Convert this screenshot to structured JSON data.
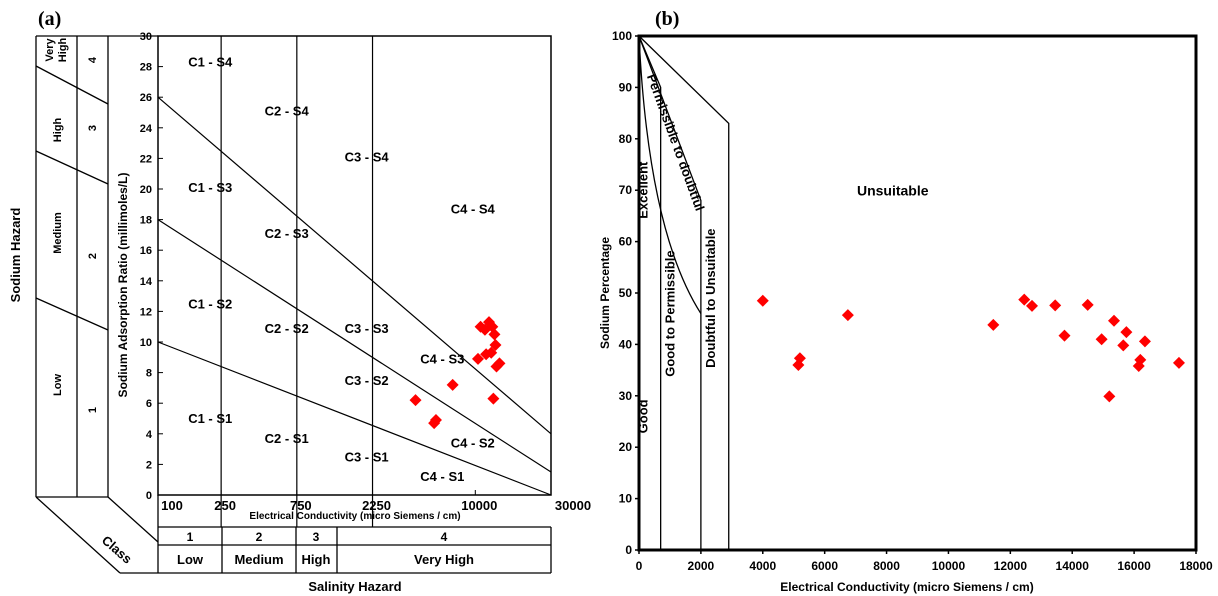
{
  "chart_data": [
    {
      "type": "scatter",
      "panel_label": "(a)",
      "xlabel": "Electrical Conductivity (micro Siemens / cm)",
      "ylabel": "Sodium Adsorption Ratio (millimoles/L)",
      "x_scale": "log",
      "xlim": [
        100,
        30000
      ],
      "ylim": [
        0,
        30
      ],
      "x_ticks": [
        "100",
        "250",
        "750",
        "2250",
        "10000",
        "30000"
      ],
      "x_tick_values": [
        100,
        250,
        750,
        2250,
        10000,
        30000
      ],
      "y_ticks": [
        "0",
        "2",
        "4",
        "6",
        "8",
        "10",
        "12",
        "14",
        "16",
        "18",
        "20",
        "22",
        "24",
        "26",
        "28",
        "30"
      ],
      "y_tick_values": [
        0,
        2,
        4,
        6,
        8,
        10,
        12,
        14,
        16,
        18,
        20,
        22,
        24,
        26,
        28,
        30
      ],
      "marker_color": "#ff0000",
      "marker_shape": "diamond",
      "grid": false,
      "boundary_lines": [
        {
          "from": [
            100,
            26
          ],
          "to": [
            30000,
            4
          ]
        },
        {
          "from": [
            100,
            18
          ],
          "to": [
            30000,
            1.5
          ]
        },
        {
          "from": [
            100,
            10
          ],
          "to": [
            30000,
            0
          ]
        }
      ],
      "vertical_dividers": [
        250,
        750,
        2250
      ],
      "zones": [
        {
          "label": "C1 - S4",
          "x": 155,
          "y": 28
        },
        {
          "label": "C2 - S4",
          "x": 470,
          "y": 24.8
        },
        {
          "label": "C3 - S4",
          "x": 1500,
          "y": 21.8
        },
        {
          "label": "C4 - S4",
          "x": 7000,
          "y": 18.4
        },
        {
          "label": "C1 - S3",
          "x": 155,
          "y": 19.8
        },
        {
          "label": "C2 - S3",
          "x": 470,
          "y": 16.8
        },
        {
          "label": "C3 - S3",
          "x": 1500,
          "y": 10.6
        },
        {
          "label": "C4 - S3",
          "x": 4500,
          "y": 8.6
        },
        {
          "label": "C1 - S2",
          "x": 155,
          "y": 12.2
        },
        {
          "label": "C2 - S2",
          "x": 470,
          "y": 10.6
        },
        {
          "label": "C3 - S2",
          "x": 1500,
          "y": 7.2
        },
        {
          "label": "C4 - S2",
          "x": 7000,
          "y": 3.1
        },
        {
          "label": "C1 - S1",
          "x": 155,
          "y": 4.7
        },
        {
          "label": "C2 - S1",
          "x": 470,
          "y": 3.4
        },
        {
          "label": "C3 - S1",
          "x": 1500,
          "y": 2.2
        },
        {
          "label": "C4 - S1",
          "x": 4500,
          "y": 0.9
        }
      ],
      "points": [
        {
          "x": 4200,
          "y": 6.2
        },
        {
          "x": 5500,
          "y": 4.7
        },
        {
          "x": 5650,
          "y": 4.9
        },
        {
          "x": 7200,
          "y": 7.2
        },
        {
          "x": 10400,
          "y": 8.9
        },
        {
          "x": 10800,
          "y": 11.0
        },
        {
          "x": 11500,
          "y": 10.8
        },
        {
          "x": 11700,
          "y": 9.2
        },
        {
          "x": 12200,
          "y": 11.3
        },
        {
          "x": 12600,
          "y": 9.3
        },
        {
          "x": 12800,
          "y": 11.0
        },
        {
          "x": 13000,
          "y": 6.3
        },
        {
          "x": 13200,
          "y": 10.5
        },
        {
          "x": 13400,
          "y": 9.8
        },
        {
          "x": 13600,
          "y": 8.4
        },
        {
          "x": 14200,
          "y": 8.6
        }
      ],
      "sodium_hazard": {
        "title": "Sodium Hazard",
        "classes": [
          {
            "num": "4",
            "name": "Very High",
            "name_lines": [
              "Very",
              "High"
            ]
          },
          {
            "num": "3",
            "name": "High"
          },
          {
            "num": "2",
            "name": "Medium"
          },
          {
            "num": "1",
            "name": "Low"
          }
        ]
      },
      "salinity_hazard": {
        "title": "Salinity Hazard",
        "class_label": "Class",
        "classes": [
          {
            "num": "1",
            "name": "Low"
          },
          {
            "num": "2",
            "name": "Medium"
          },
          {
            "num": "3",
            "name": "High"
          },
          {
            "num": "4",
            "name": "Very High"
          }
        ]
      }
    },
    {
      "type": "scatter",
      "panel_label": "(b)",
      "xlabel": "Electrical Conductivity (micro Siemens / cm)",
      "ylabel": "Sodium Percentage",
      "xlim": [
        0,
        18000
      ],
      "ylim": [
        0,
        100
      ],
      "x_ticks": [
        "0",
        "2000",
        "4000",
        "6000",
        "8000",
        "10000",
        "12000",
        "14000",
        "16000",
        "18000"
      ],
      "x_tick_values": [
        0,
        2000,
        4000,
        6000,
        8000,
        10000,
        12000,
        14000,
        16000,
        18000
      ],
      "y_ticks": [
        "0",
        "10",
        "20",
        "30",
        "40",
        "50",
        "60",
        "70",
        "80",
        "90",
        "100"
      ],
      "y_tick_values": [
        0,
        10,
        20,
        30,
        40,
        50,
        60,
        70,
        80,
        90,
        100
      ],
      "marker_color": "#ff0000",
      "marker_shape": "diamond",
      "grid": false,
      "regions": [
        {
          "label": "Excellent",
          "x": 280,
          "y": 70
        },
        {
          "label": "Good",
          "x": 280,
          "y": 26
        },
        {
          "label": "Good    to Permissible",
          "x": 1150,
          "y": 46
        },
        {
          "label": "Doubtful to Unsuitable",
          "x": 2450,
          "y": 49
        },
        {
          "label": "Permissible to doubtful",
          "x": 1050,
          "y": 79
        },
        {
          "label": "Unsuitable",
          "x": 8200,
          "y": 69
        }
      ],
      "points": [
        {
          "x": 4000,
          "y": 48.5
        },
        {
          "x": 5150,
          "y": 36.0
        },
        {
          "x": 5200,
          "y": 37.3
        },
        {
          "x": 6750,
          "y": 45.7
        },
        {
          "x": 11450,
          "y": 43.8
        },
        {
          "x": 12450,
          "y": 48.7
        },
        {
          "x": 12700,
          "y": 47.5
        },
        {
          "x": 13450,
          "y": 47.6
        },
        {
          "x": 13750,
          "y": 41.7
        },
        {
          "x": 14500,
          "y": 47.7
        },
        {
          "x": 14950,
          "y": 41.0
        },
        {
          "x": 15200,
          "y": 29.9
        },
        {
          "x": 15350,
          "y": 44.6
        },
        {
          "x": 15650,
          "y": 39.8
        },
        {
          "x": 15750,
          "y": 42.4
        },
        {
          "x": 16150,
          "y": 35.8
        },
        {
          "x": 16200,
          "y": 37.0
        },
        {
          "x": 16350,
          "y": 40.6
        },
        {
          "x": 17450,
          "y": 36.4
        }
      ]
    }
  ]
}
